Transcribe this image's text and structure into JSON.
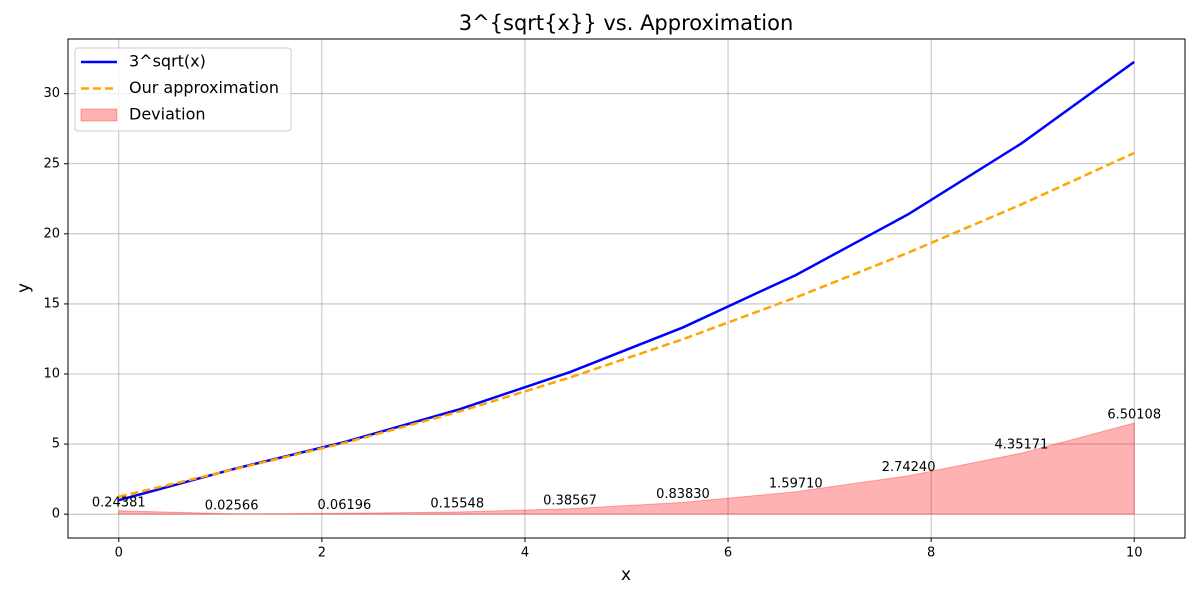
{
  "chart_data": {
    "type": "line",
    "title": "3^{sqrt{x}} vs. Approximation",
    "x_label": "x",
    "y_label": "y",
    "x": [
      0,
      1.111,
      2.222,
      3.333,
      4.444,
      5.556,
      6.667,
      7.778,
      8.889,
      10
    ],
    "series": [
      {
        "name": "3^sqrt(x)",
        "kind": "line",
        "color": "#0000ff",
        "dash": "solid",
        "values": [
          1,
          3.184,
          5.143,
          7.431,
          10.137,
          13.322,
          17.057,
          21.41,
          26.45,
          32.27
        ]
      },
      {
        "name": "Our approximation",
        "kind": "line",
        "color": "#ffa500",
        "dash": "dashed",
        "values": [
          1.24381,
          3.158,
          5.081,
          7.275,
          9.751,
          12.484,
          15.46,
          18.668,
          22.098,
          25.769
        ]
      },
      {
        "name": "Deviation",
        "kind": "fill",
        "color": "#ff0000",
        "values": [
          0.24381,
          0.02566,
          0.06196,
          0.15548,
          0.38567,
          0.8383,
          1.5971,
          2.7424,
          4.35171,
          6.50108
        ],
        "value_labels": [
          "0.24381",
          "0.02566",
          "0.06196",
          "0.15548",
          "0.38567",
          "0.83830",
          "1.59710",
          "2.74240",
          "4.35171",
          "6.50108"
        ]
      }
    ],
    "xlim": [
      -0.5,
      10.5
    ],
    "xticks": [
      0,
      2,
      4,
      6,
      8,
      10
    ],
    "ylim": [
      -1.7,
      33.9
    ],
    "yticks": [
      0,
      5,
      10,
      15,
      20,
      25,
      30
    ],
    "grid": true,
    "legend": "upper-left"
  }
}
